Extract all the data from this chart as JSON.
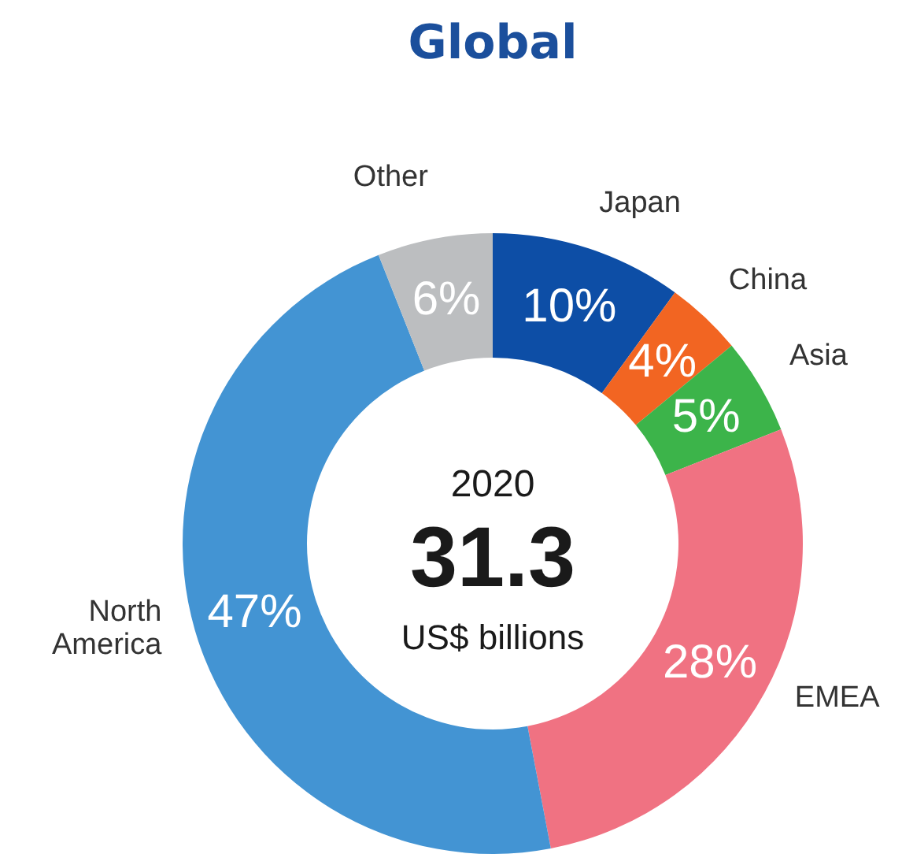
{
  "chart_data": {
    "type": "donut",
    "title": "Global",
    "categories": [
      "Japan",
      "China",
      "Asia",
      "EMEA",
      "North America",
      "Other"
    ],
    "values": [
      10,
      4,
      5,
      28,
      47,
      6
    ],
    "value_labels": [
      "10%",
      "4%",
      "5%",
      "28%",
      "47%",
      "6%"
    ],
    "colors": [
      "#0d4ea6",
      "#f26522",
      "#3cb44a",
      "#f07282",
      "#4394d3",
      "#bcbec0"
    ],
    "annotations": [
      "2020",
      "31.3",
      "US$ billions"
    ]
  }
}
